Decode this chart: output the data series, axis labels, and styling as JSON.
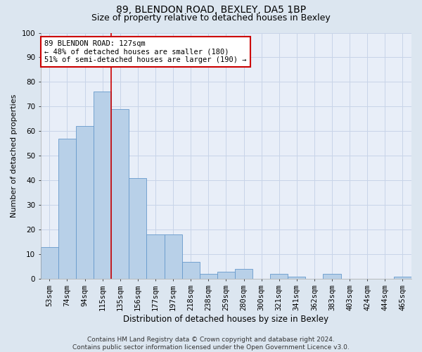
{
  "title": "89, BLENDON ROAD, BEXLEY, DA5 1BP",
  "subtitle": "Size of property relative to detached houses in Bexley",
  "xlabel": "Distribution of detached houses by size in Bexley",
  "ylabel": "Number of detached properties",
  "categories": [
    "53sqm",
    "74sqm",
    "94sqm",
    "115sqm",
    "135sqm",
    "156sqm",
    "177sqm",
    "197sqm",
    "218sqm",
    "238sqm",
    "259sqm",
    "280sqm",
    "300sqm",
    "321sqm",
    "341sqm",
    "362sqm",
    "383sqm",
    "403sqm",
    "424sqm",
    "444sqm",
    "465sqm"
  ],
  "values": [
    13,
    57,
    62,
    76,
    69,
    41,
    18,
    18,
    7,
    2,
    3,
    4,
    0,
    2,
    1,
    0,
    2,
    0,
    0,
    0,
    1
  ],
  "bar_color": "#b8d0e8",
  "bar_edge_color": "#6699cc",
  "annotation_box_text": "89 BLENDON ROAD: 127sqm\n← 48% of detached houses are smaller (180)\n51% of semi-detached houses are larger (190) →",
  "annotation_box_color": "#ffffff",
  "annotation_box_edge_color": "#cc0000",
  "ylim": [
    0,
    100
  ],
  "yticks": [
    0,
    10,
    20,
    30,
    40,
    50,
    60,
    70,
    80,
    90,
    100
  ],
  "grid_color": "#c8d4e8",
  "bg_color": "#dce6f0",
  "plot_bg_color": "#e8eef8",
  "footnote": "Contains HM Land Registry data © Crown copyright and database right 2024.\nContains public sector information licensed under the Open Government Licence v3.0.",
  "title_fontsize": 10,
  "subtitle_fontsize": 9,
  "xlabel_fontsize": 8.5,
  "ylabel_fontsize": 8,
  "tick_fontsize": 7.5,
  "annotation_fontsize": 7.5,
  "footnote_fontsize": 6.5
}
